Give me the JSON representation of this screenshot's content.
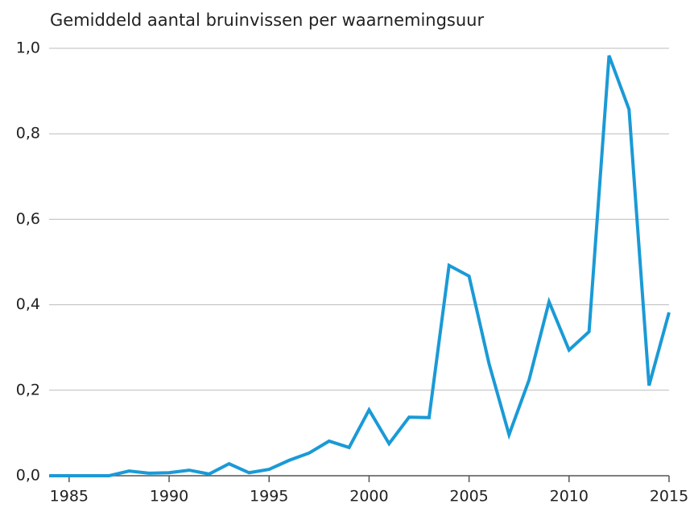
{
  "chart_data": {
    "type": "line",
    "title": "Gemiddeld aantal bruinvissen per waarnemingsuur",
    "x": [
      1984,
      1985,
      1986,
      1987,
      1988,
      1989,
      1990,
      1991,
      1992,
      1993,
      1994,
      1995,
      1996,
      1997,
      1998,
      1999,
      2000,
      2001,
      2002,
      2003,
      2004,
      2005,
      2006,
      2007,
      2008,
      2009,
      2010,
      2011,
      2012,
      2013,
      2014,
      2015
    ],
    "series": [
      {
        "name": "Gemiddeld aantal bruinvissen per waarnemingsuur",
        "color": "#1a9ad6",
        "values": [
          0,
          0,
          0,
          0,
          0.011,
          0.006,
          0.007,
          0.013,
          0.004,
          0.028,
          0.007,
          0.015,
          0.036,
          0.053,
          0.081,
          0.066,
          0.154,
          0.075,
          0.137,
          0.136,
          0.492,
          0.467,
          0.262,
          0.096,
          0.224,
          0.407,
          0.294,
          0.337,
          0.983,
          0.857,
          0.211,
          0.382
        ]
      }
    ],
    "xlim": [
      1984,
      2015
    ],
    "xticks": [
      1985,
      1990,
      1995,
      2000,
      2005,
      2010,
      2015
    ],
    "ylim": [
      0,
      1
    ],
    "yticks": [
      {
        "value": 0,
        "label": "0,0"
      },
      {
        "value": 0.2,
        "label": "0,2"
      },
      {
        "value": 0.4,
        "label": "0,4"
      },
      {
        "value": 0.6,
        "label": "0,6"
      },
      {
        "value": 0.8,
        "label": "0,8"
      },
      {
        "value": 1,
        "label": "1,0"
      }
    ],
    "grid": true
  }
}
